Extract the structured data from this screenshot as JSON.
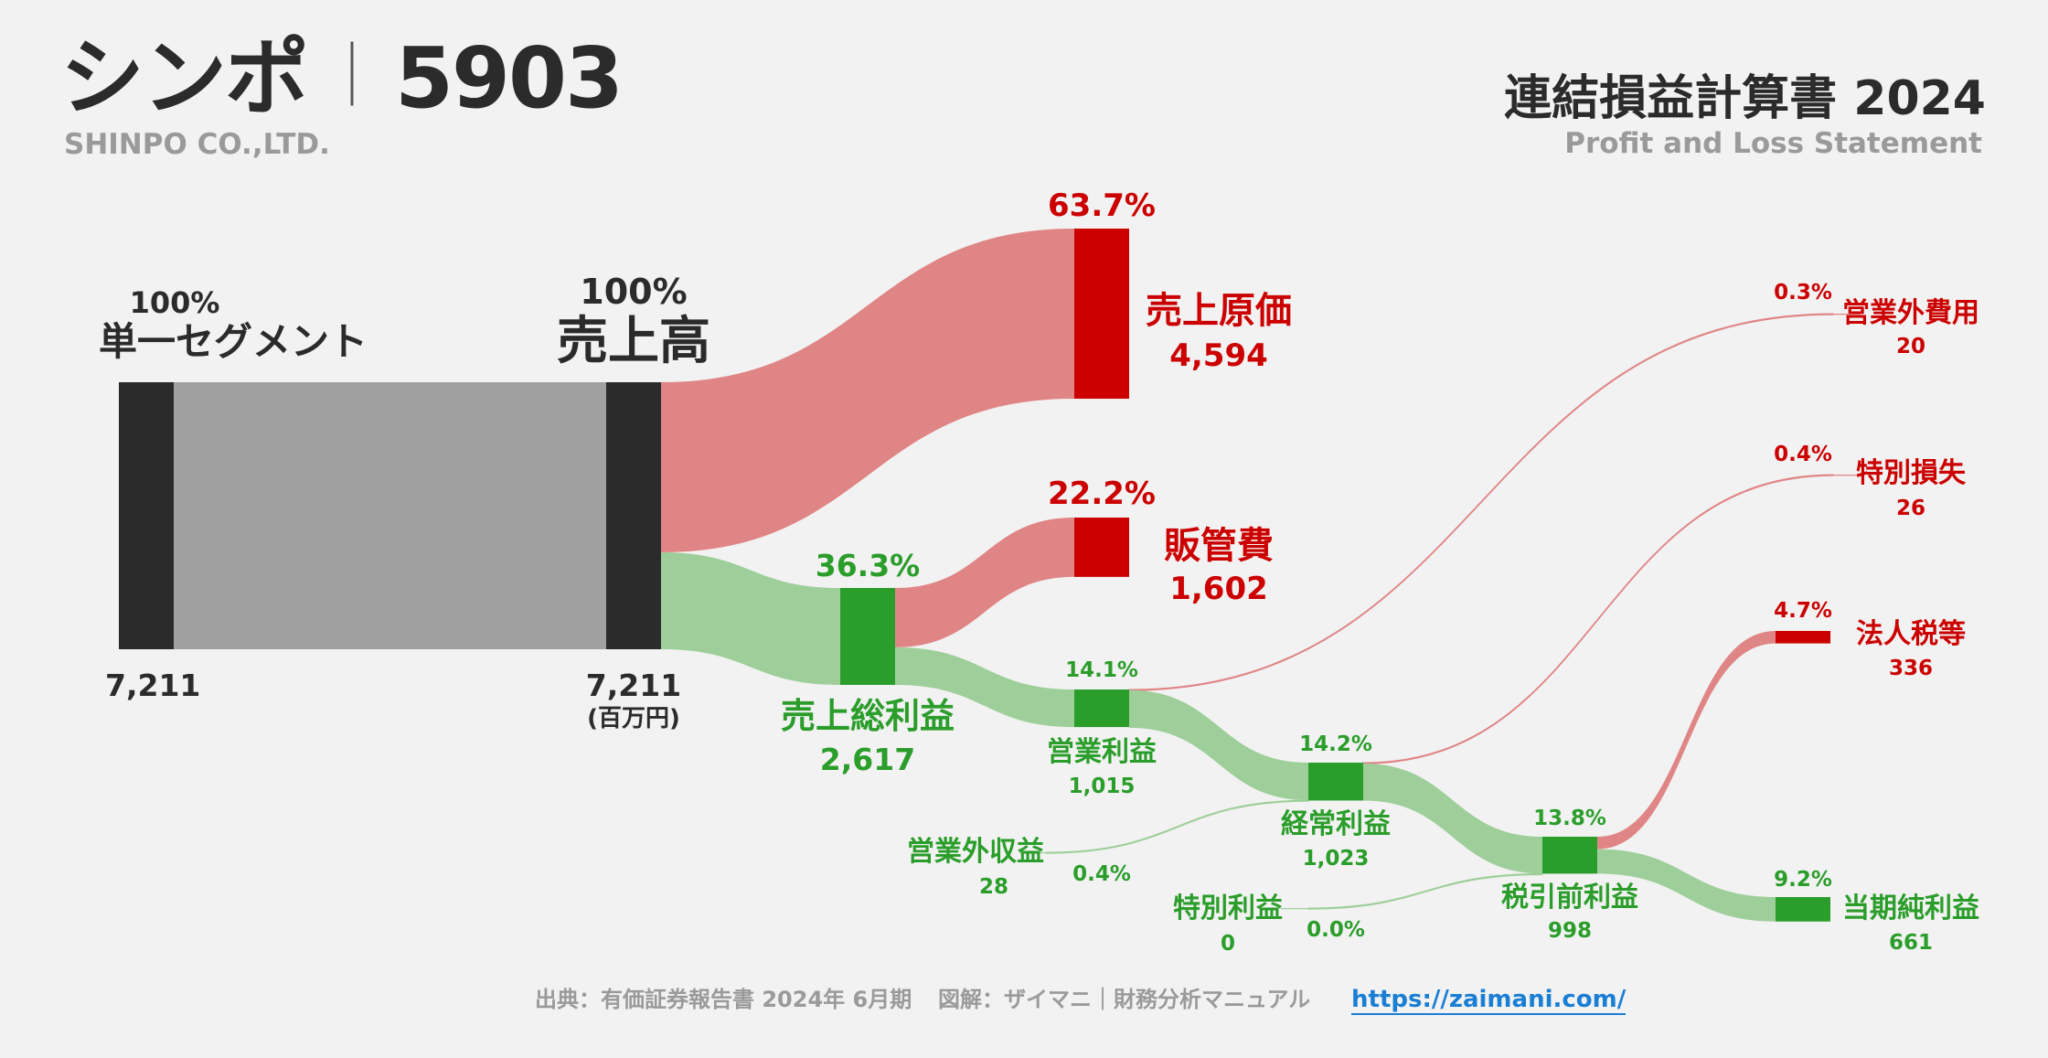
{
  "header": {
    "company_jp": "シンポ",
    "separator": "｜",
    "ticker": "5903",
    "company_en": "SHINPO CO.,LTD.",
    "statement_jp": "連結損益計算書 2024",
    "statement_en": "Profit and Loss Statement"
  },
  "footer": {
    "source": "出典：有価証券報告書 2024年 6月期",
    "credit": "図解：ザイマニ｜財務分析マニュアル",
    "url": "https://zaimani.com/"
  },
  "colors": {
    "background": "#f2f2f2",
    "revenue": "#2b2b2b",
    "revenue_flow": "#a0a0a0",
    "cost": "#cc0000",
    "cost_flow": "#e08585",
    "profit": "#2a9d2a",
    "profit_flow": "#9ecf9a"
  },
  "chart_data": {
    "type": "sankey",
    "unit": "(百万円)",
    "nodes": [
      {
        "id": "segment",
        "label": "単一セグメント",
        "value": 7211,
        "value_label": "7,211",
        "pct": "100%",
        "kind": "revenue"
      },
      {
        "id": "sales",
        "label": "売上高",
        "value": 7211,
        "value_label": "7,211",
        "pct": "100%",
        "kind": "revenue"
      },
      {
        "id": "cogs",
        "label": "売上原価",
        "value": 4594,
        "value_label": "4,594",
        "pct": "63.7%",
        "kind": "cost"
      },
      {
        "id": "sga",
        "label": "販管費",
        "value": 1602,
        "value_label": "1,602",
        "pct": "22.2%",
        "kind": "cost"
      },
      {
        "id": "gross",
        "label": "売上総利益",
        "value": 2617,
        "value_label": "2,617",
        "pct": "36.3%",
        "kind": "profit"
      },
      {
        "id": "op",
        "label": "営業利益",
        "value": 1015,
        "value_label": "1,015",
        "pct": "14.1%",
        "kind": "profit"
      },
      {
        "id": "nonop_inc",
        "label": "営業外収益",
        "value": 28,
        "value_label": "28",
        "pct": "0.4%",
        "kind": "profit"
      },
      {
        "id": "nonop_exp",
        "label": "営業外費用",
        "value": 20,
        "value_label": "20",
        "pct": "0.3%",
        "kind": "cost"
      },
      {
        "id": "ord",
        "label": "経常利益",
        "value": 1023,
        "value_label": "1,023",
        "pct": "14.2%",
        "kind": "profit"
      },
      {
        "id": "ext_gain",
        "label": "特別利益",
        "value": 0,
        "value_label": "0",
        "pct": "0.0%",
        "kind": "profit"
      },
      {
        "id": "ext_loss",
        "label": "特別損失",
        "value": 26,
        "value_label": "26",
        "pct": "0.4%",
        "kind": "cost"
      },
      {
        "id": "pretax",
        "label": "税引前利益",
        "value": 998,
        "value_label": "998",
        "pct": "13.8%",
        "kind": "profit"
      },
      {
        "id": "tax",
        "label": "法人税等",
        "value": 336,
        "value_label": "336",
        "pct": "4.7%",
        "kind": "cost"
      },
      {
        "id": "net",
        "label": "当期純利益",
        "value": 661,
        "value_label": "661",
        "pct": "9.2%",
        "kind": "profit"
      }
    ],
    "links": [
      {
        "from": "segment",
        "to": "sales",
        "value": 7211
      },
      {
        "from": "sales",
        "to": "cogs",
        "value": 4594
      },
      {
        "from": "sales",
        "to": "gross",
        "value": 2617
      },
      {
        "from": "gross",
        "to": "sga",
        "value": 1602
      },
      {
        "from": "gross",
        "to": "op",
        "value": 1015
      },
      {
        "from": "op",
        "to": "nonop_exp",
        "value": 20
      },
      {
        "from": "op",
        "to": "ord",
        "value": 1015
      },
      {
        "from": "nonop_inc",
        "to": "ord",
        "value": 28
      },
      {
        "from": "ord",
        "to": "ext_loss",
        "value": 26
      },
      {
        "from": "ord",
        "to": "pretax",
        "value": 998
      },
      {
        "from": "ext_gain",
        "to": "pretax",
        "value": 0
      },
      {
        "from": "pretax",
        "to": "tax",
        "value": 336
      },
      {
        "from": "pretax",
        "to": "net",
        "value": 661
      }
    ]
  }
}
